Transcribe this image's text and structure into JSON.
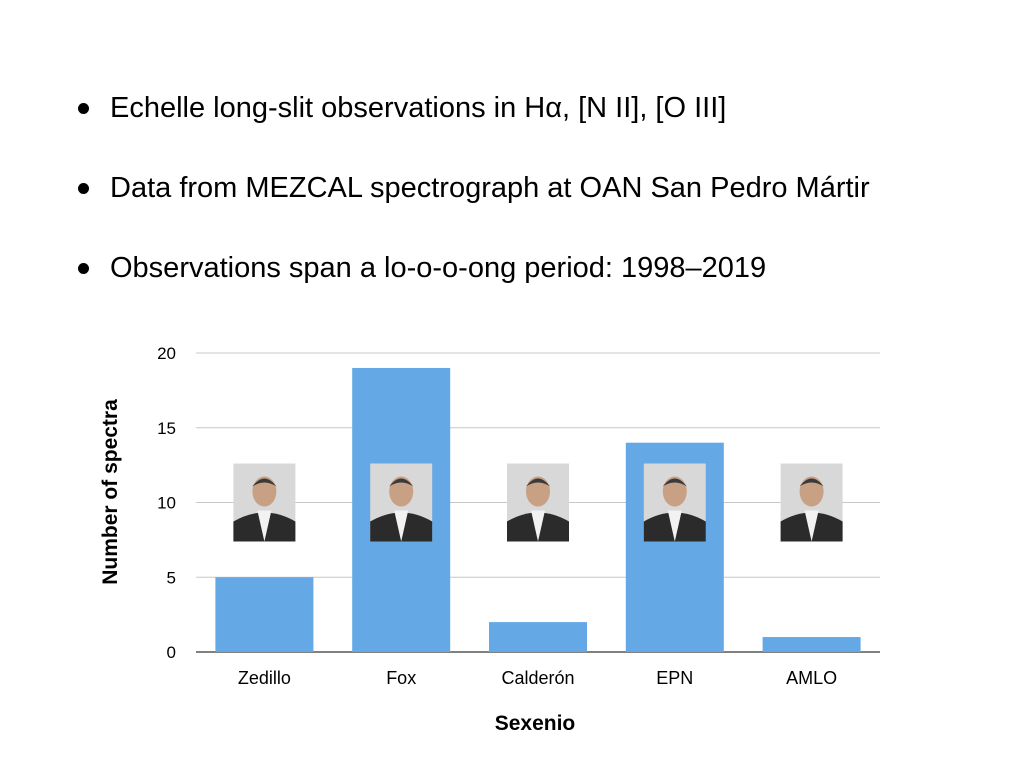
{
  "bullets": [
    "Echelle long-slit observations in Hα, [N II], [O III]",
    "Data from MEZCAL spectrograph at OAN San Pedro Mártir",
    "Observations span a lo-o-o-ong period: 1998–2019"
  ],
  "chart_data": {
    "type": "bar",
    "categories": [
      "Zedillo",
      "Fox",
      "Calderón",
      "EPN",
      "AMLO"
    ],
    "values": [
      5,
      19,
      2,
      14,
      1
    ],
    "xlabel": "Sexenio",
    "ylabel": "Number of spectra",
    "ylim": [
      0,
      20
    ],
    "yticks": [
      0,
      5,
      10,
      15,
      20
    ],
    "grid": true,
    "bar_color": "#64A8E6",
    "portrait_value": 10
  }
}
